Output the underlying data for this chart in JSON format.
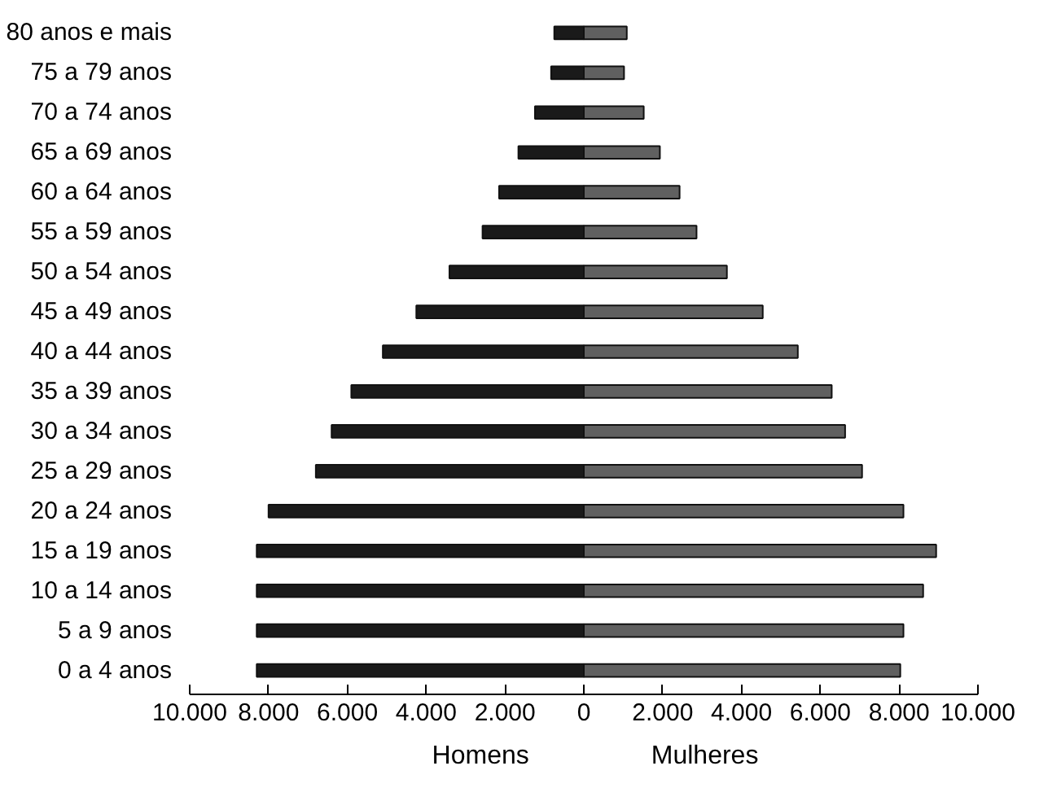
{
  "chart_data": {
    "type": "bar",
    "orientation": "horizontal",
    "categories": [
      "80 anos e mais",
      "75 a 79 anos",
      "70 a 74 anos",
      "65 a 69 anos",
      "60 a 64 anos",
      "55 a 59 anos",
      "50 a 54 anos",
      "45 a 49 anos",
      "40 a 44 anos",
      "35 a 39 anos",
      "30 a 34 anos",
      "25 a 29 anos",
      "20 a 24 anos",
      "15 a 19 anos",
      "10 a 14 anos",
      "5 a 9 anos",
      "0 a 4 anos"
    ],
    "series": [
      {
        "name": "Homens",
        "color": "#1a1a1a",
        "values": [
          -750,
          -830,
          -1240,
          -1660,
          -2150,
          -2570,
          -3410,
          -4250,
          -5100,
          -5900,
          -6400,
          -6800,
          -8000,
          -8300,
          -8300,
          -8300,
          -8300
        ]
      },
      {
        "name": "Mulheres",
        "color": "#606060",
        "values": [
          1090,
          1020,
          1520,
          1930,
          2430,
          2860,
          3630,
          4540,
          5430,
          6290,
          6630,
          7060,
          8110,
          8940,
          8610,
          8110,
          8030
        ]
      }
    ],
    "xlim": [
      -10000,
      10000
    ],
    "xticks": [
      {
        "value": -10000,
        "label": "10.000"
      },
      {
        "value": -8000,
        "label": "8.000"
      },
      {
        "value": -6000,
        "label": "6.000"
      },
      {
        "value": -4000,
        "label": "4.000"
      },
      {
        "value": -2000,
        "label": "2.000"
      },
      0,
      {
        "value": 2000,
        "label": "2.000"
      },
      {
        "value": 4000,
        "label": "4.000"
      },
      {
        "value": 6000,
        "label": "6.000"
      },
      {
        "value": 8000,
        "label": "8.000"
      },
      {
        "value": 10000,
        "label": "10.000"
      }
    ],
    "stacked": true,
    "grid": false,
    "legend": "bottom"
  }
}
